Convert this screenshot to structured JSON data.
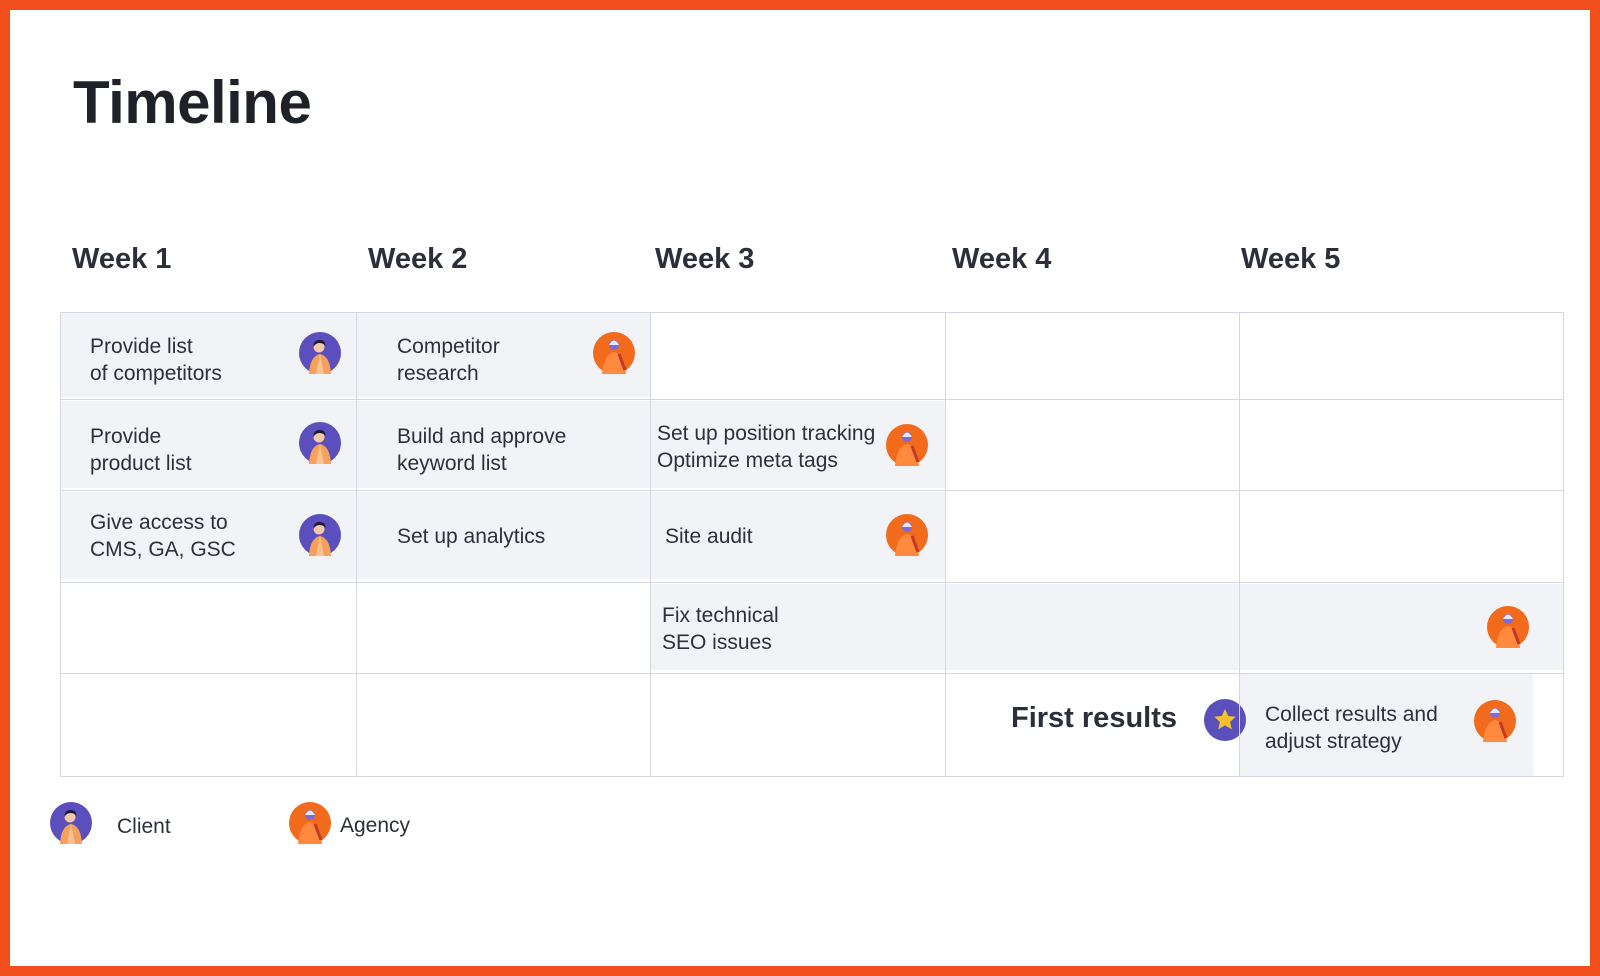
{
  "title": "Timeline",
  "weeks": [
    "Week 1",
    "Week 2",
    "Week 3",
    "Week 4",
    "Week 5"
  ],
  "tasks": [
    {
      "text": "Provide list\nof competitors",
      "owner": "client"
    },
    {
      "text": "Provide\nproduct list",
      "owner": "client"
    },
    {
      "text": "Give access to\nCMS, GA, GSC",
      "owner": "client"
    },
    {
      "text": "Competitor\nresearch",
      "owner": "agency"
    },
    {
      "text": "Build and approve\nkeyword list",
      "owner": "none"
    },
    {
      "text": "Set up analytics",
      "owner": "none"
    },
    {
      "text": "Set up position tracking\nOptimize meta tags",
      "owner": "agency"
    },
    {
      "text": "Site audit",
      "owner": "agency"
    },
    {
      "text": "Fix technical\nSEO issues",
      "owner": "agency"
    },
    {
      "text": "Collect results and\nadjust strategy",
      "owner": "agency"
    }
  ],
  "milestone": {
    "label": "First results",
    "icon": "star-icon"
  },
  "legend": {
    "client": "Client",
    "agency": "Agency"
  },
  "colors": {
    "frame": "#f04e1b",
    "client_avatar": "#5b4ebd",
    "agency_avatar": "#f26a1b",
    "task_fill": "#f2f3f7",
    "star": "#f7c12e"
  }
}
